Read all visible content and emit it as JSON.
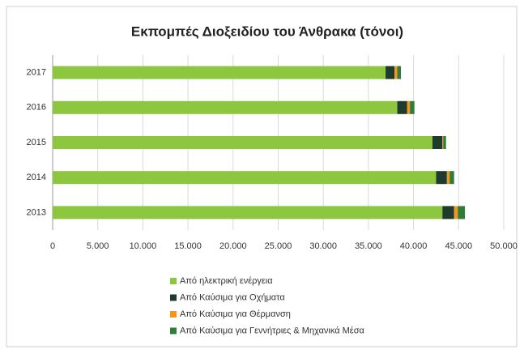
{
  "chart_data": {
    "type": "stacked-bar-horizontal",
    "title": "Εκπομπές Διοξειδίου του Άνθρακα (τόνοι)",
    "categories": [
      "2017",
      "2016",
      "2015",
      "2014",
      "2013"
    ],
    "series": [
      {
        "name": "Από ηλεκτρική ενέργεια",
        "color": "#8dc63f",
        "values": [
          36900,
          38200,
          42100,
          42500,
          43200
        ]
      },
      {
        "name": "Από Καύσιμα για Οχήματα",
        "color": "#1e3b2b",
        "values": [
          1000,
          1100,
          1100,
          1200,
          1300
        ]
      },
      {
        "name": "Από Καύσιμα για Θέρμανση",
        "color": "#f7941d",
        "values": [
          300,
          300,
          100,
          300,
          400
        ]
      },
      {
        "name": "Από Καύσιμα για Γεννήτριες & Μηχανικά Μέσα",
        "color": "#2e7d3a",
        "values": [
          400,
          500,
          300,
          500,
          800
        ]
      }
    ],
    "xlim": [
      0,
      50000
    ],
    "xticks": [
      0,
      {
        "value": 5000,
        "label": "5.000"
      },
      {
        "value": 10000,
        "label": "10.000"
      },
      {
        "value": 15000,
        "label": "15.000"
      },
      {
        "value": 20000,
        "label": "20.000"
      },
      {
        "value": 25000,
        "label": "25.000"
      },
      {
        "value": 30000,
        "label": "30.000"
      },
      {
        "value": 35000,
        "label": "35.000"
      },
      {
        "value": 40000,
        "label": "40.000"
      },
      {
        "value": 45000,
        "label": "45.000"
      },
      {
        "value": 50000,
        "label": "50.000"
      }
    ],
    "grid": true
  }
}
